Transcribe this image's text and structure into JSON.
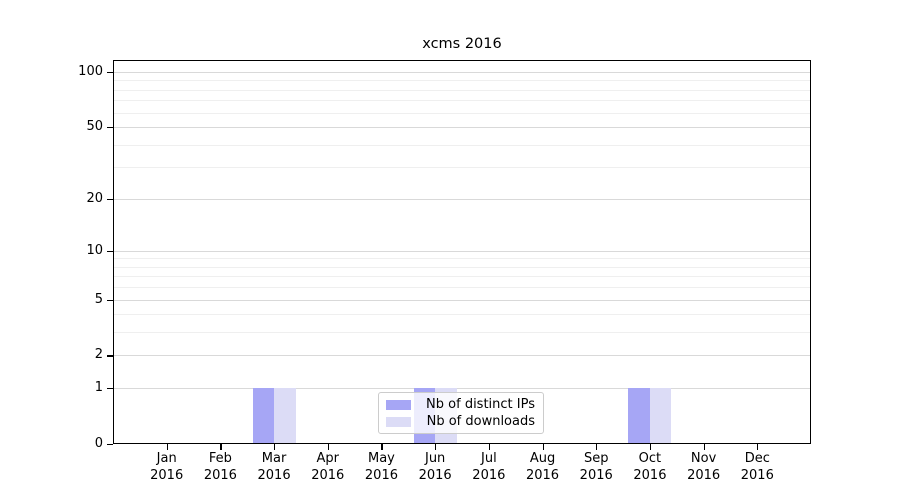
{
  "chart_data": {
    "type": "bar",
    "title": "xcms 2016",
    "categories": [
      "Jan",
      "Feb",
      "Mar",
      "Apr",
      "May",
      "Jun",
      "Jul",
      "Aug",
      "Sep",
      "Oct",
      "Nov",
      "Dec"
    ],
    "x_year": "2016",
    "series": [
      {
        "name": "Nb of distinct IPs",
        "color": "#a6a6f5",
        "values": [
          0,
          0,
          1,
          0,
          0,
          1,
          0,
          0,
          0,
          1,
          0,
          0
        ]
      },
      {
        "name": "Nb of downloads",
        "color": "#dcdcf6",
        "values": [
          0,
          0,
          1,
          0,
          0,
          1,
          0,
          0,
          0,
          1,
          0,
          0
        ]
      }
    ],
    "yscale": "log1p",
    "ylim": [
      0,
      115
    ],
    "y_ticks": [
      {
        "value": 0,
        "label": "0"
      },
      {
        "value": 1,
        "label": "1"
      },
      {
        "value": 2,
        "label": "2"
      },
      {
        "value": 5,
        "label": "5"
      },
      {
        "value": 10,
        "label": "10"
      },
      {
        "value": 20,
        "label": "20"
      },
      {
        "value": 50,
        "label": "50"
      },
      {
        "value": 100,
        "label": "100"
      }
    ],
    "y_minor_ticks": [
      3,
      4,
      6,
      7,
      8,
      9,
      30,
      40,
      60,
      70,
      80,
      90
    ],
    "grid": true,
    "legend": {
      "position": "inside-bottom-center"
    }
  },
  "colors": {
    "background": "#ffffff",
    "axis": "#000000",
    "grid_major": "#d9d9d9",
    "grid_minor": "#efefef",
    "legend_border": "#cccccc"
  }
}
